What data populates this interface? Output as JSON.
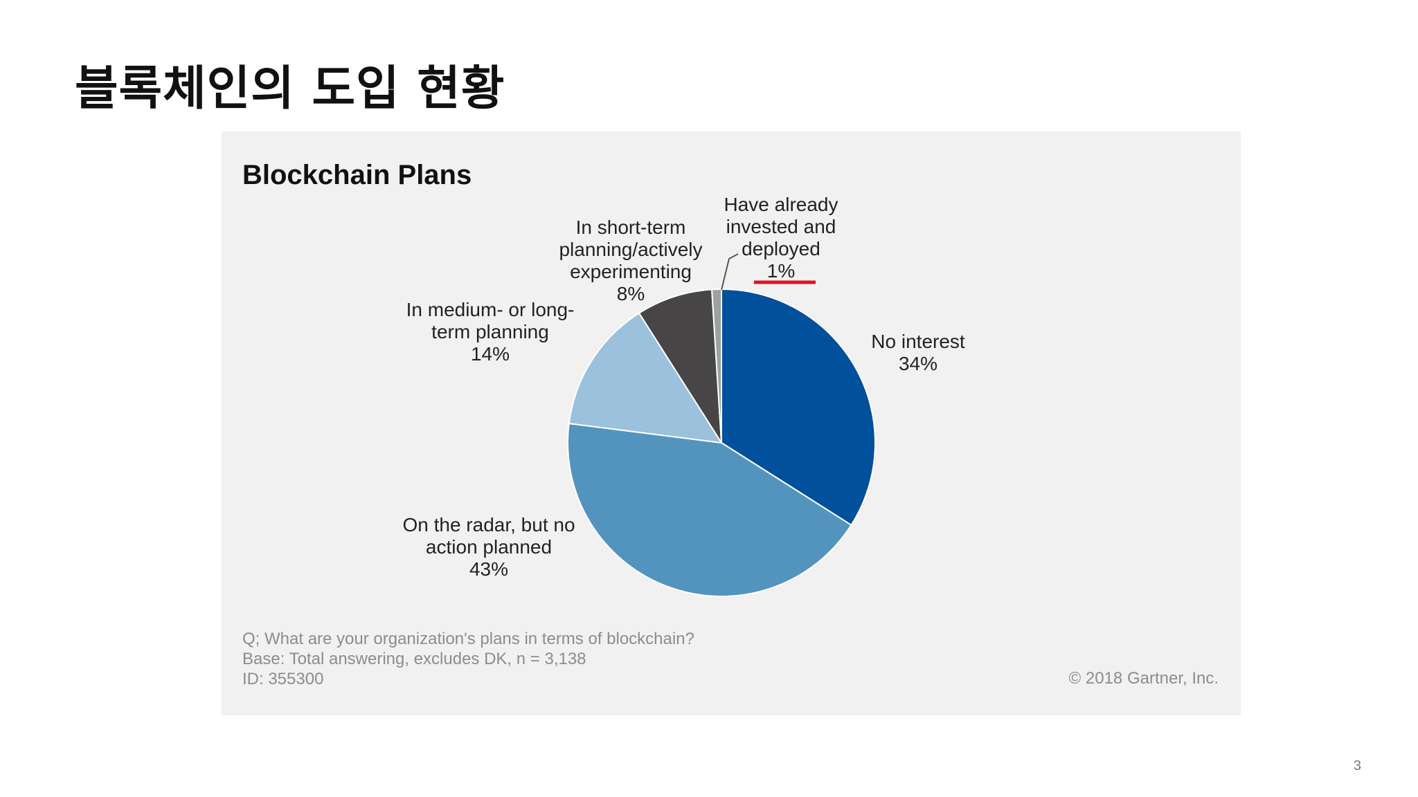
{
  "slide": {
    "title": "블록체인의 도입 현황",
    "page_number": "3"
  },
  "chart_data": {
    "type": "pie",
    "title": "Blockchain Plans",
    "slices": [
      {
        "label_lines": [
          "No interest"
        ],
        "value": 34,
        "display": "34%",
        "color": "#00509b"
      },
      {
        "label_lines": [
          "On the radar, but no",
          "action planned"
        ],
        "value": 43,
        "display": "43%",
        "color": "#5294be"
      },
      {
        "label_lines": [
          "In medium- or long-",
          "term planning"
        ],
        "value": 14,
        "display": "14%",
        "color": "#9bc1dc"
      },
      {
        "label_lines": [
          "In short-term",
          "planning/actively",
          "experimenting"
        ],
        "value": 8,
        "display": "8%",
        "color": "#474546"
      },
      {
        "label_lines": [
          "Have already",
          "invested and",
          "deployed"
        ],
        "value": 1,
        "display": "1%",
        "color": "#a0a0a0"
      }
    ],
    "footnotes": [
      "Q; What are your organization's plans in terms of blockchain?",
      "Base: Total answering, excludes DK, n = 3,138",
      "ID: 355300"
    ],
    "copyright": "© 2018 Gartner, Inc.",
    "highlight": {
      "target": "1%",
      "color": "#e0141e"
    }
  }
}
